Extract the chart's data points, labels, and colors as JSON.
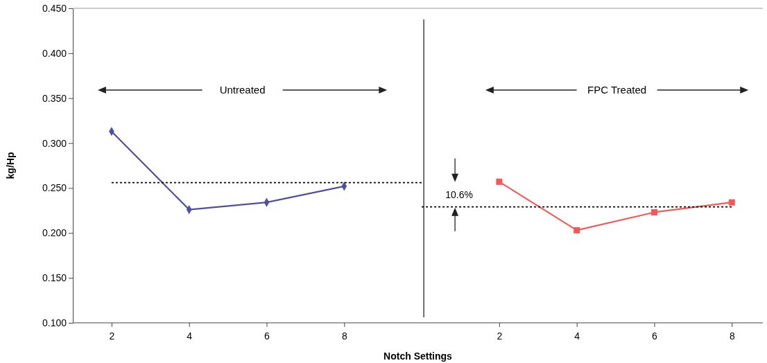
{
  "chart_data": {
    "type": "line",
    "xlabel": "Notch Settings",
    "ylabel": "kg/Hp",
    "categories": [
      "2",
      "4",
      "6",
      "8",
      null,
      "2",
      "4",
      "6",
      "8"
    ],
    "ylim": [
      0.1,
      0.45
    ],
    "yticks": [
      {
        "value": 0.1,
        "label": "0.100"
      },
      {
        "value": 0.15,
        "label": "0.150"
      },
      {
        "value": 0.2,
        "label": "0.200"
      },
      {
        "value": 0.25,
        "label": "0.250"
      },
      {
        "value": 0.3,
        "label": "0.300"
      },
      {
        "value": 0.35,
        "label": "0.350"
      },
      {
        "value": 0.4,
        "label": "0.400"
      },
      {
        "value": 0.45,
        "label": "0.450"
      }
    ],
    "series": [
      {
        "color": "#4f4f9b",
        "marker": "diamond",
        "line_style": "solid",
        "values": [
          0.313,
          0.226,
          0.234,
          0.252,
          null,
          null,
          null,
          null,
          null
        ]
      },
      {
        "color": "#f05a5a",
        "marker": "square",
        "line_style": "solid",
        "values": [
          null,
          null,
          null,
          null,
          null,
          0.257,
          0.203,
          0.223,
          0.234
        ]
      },
      {
        "color": "#000000",
        "marker": "none",
        "line_style": "dotted",
        "values": [
          0.256,
          0.256,
          0.256,
          0.256,
          0.256,
          null,
          null,
          null,
          null
        ]
      },
      {
        "color": "#000000",
        "marker": "none",
        "line_style": "dotted",
        "values": [
          null,
          null,
          null,
          null,
          0.229,
          0.229,
          0.229,
          0.229,
          0.229
        ]
      }
    ],
    "annotations": [
      "Untreated",
      "FPC Treated",
      "10.6%"
    ]
  }
}
